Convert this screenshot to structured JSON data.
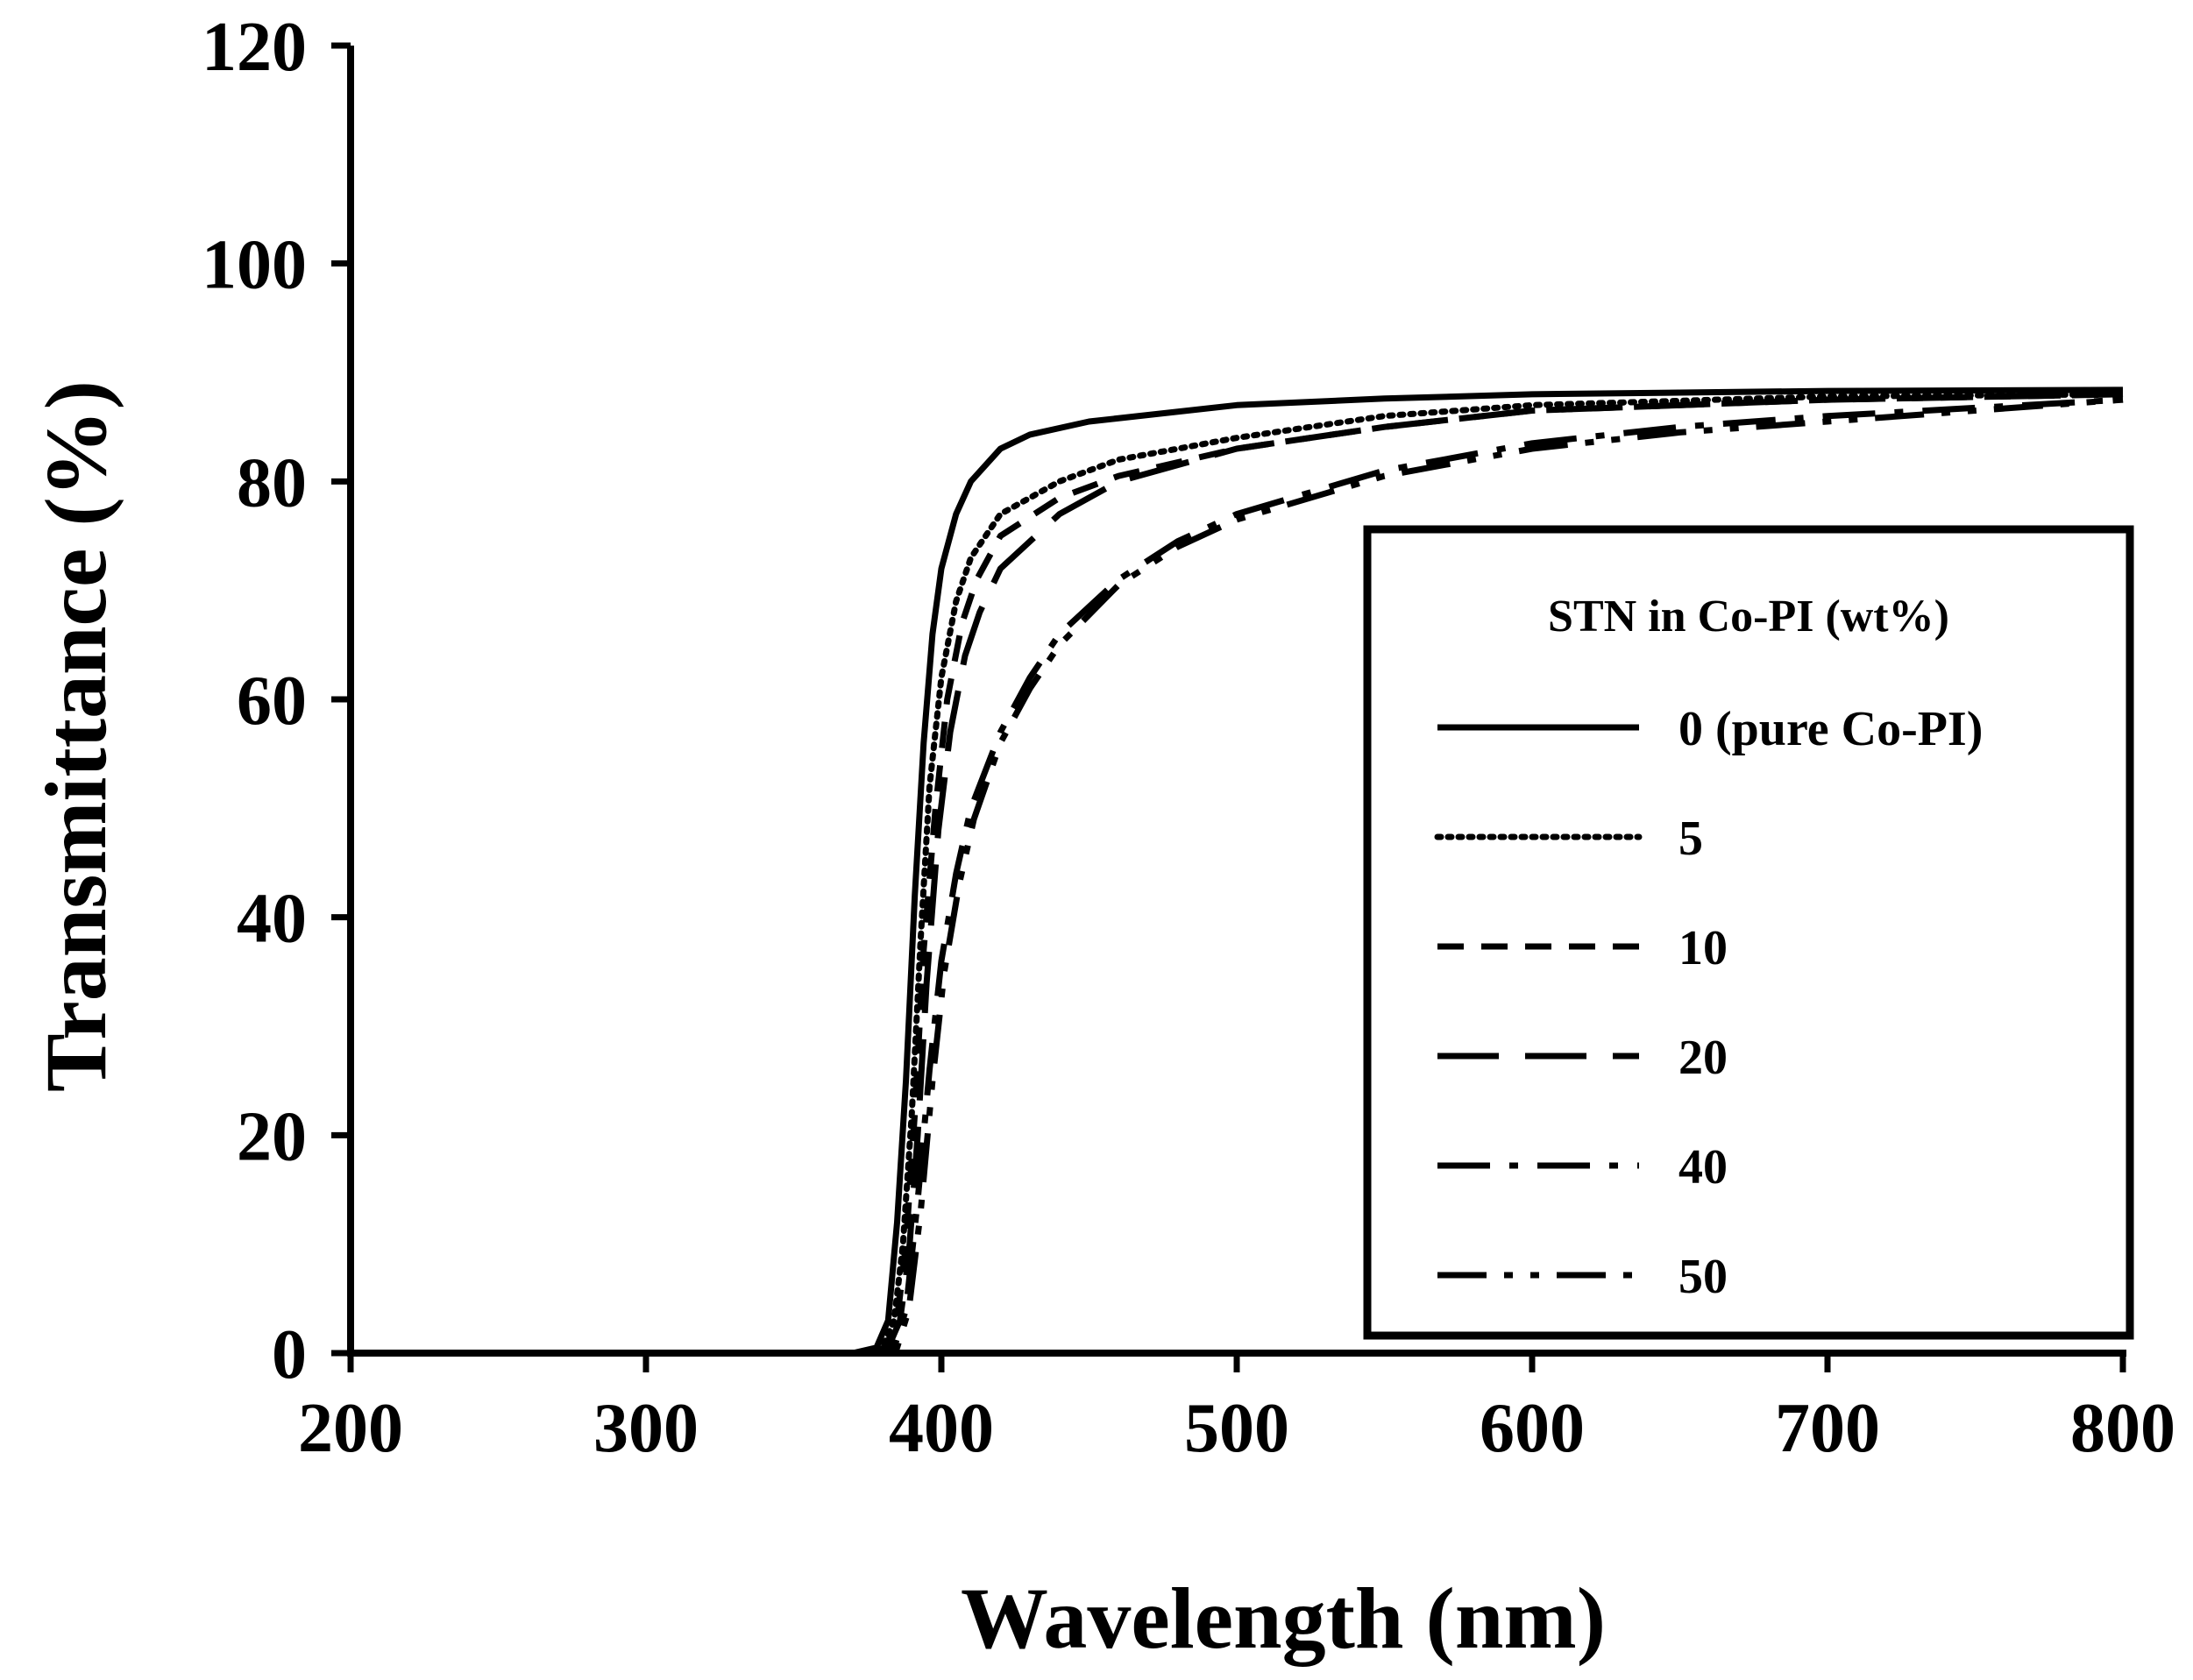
{
  "chart_data": {
    "type": "line",
    "title": "",
    "xlabel": "Wavelength (nm)",
    "ylabel": "Transmittance (%)",
    "xlim": [
      200,
      800
    ],
    "ylim": [
      0,
      120
    ],
    "xticks": [
      "200",
      "300",
      "400",
      "500",
      "600",
      "700",
      "800"
    ],
    "yticks": [
      "0",
      "20",
      "40",
      "60",
      "80",
      "100",
      "120"
    ],
    "grid": false,
    "legend": {
      "title": "STN in Co-PI (wt%)",
      "position": "right, mid-lower inside plot area",
      "boxed": true
    },
    "series": [
      {
        "name": "0 (pure Co-PI)",
        "style": "solid",
        "x": [
          200,
          370,
          378,
          382,
          385,
          388,
          391,
          394,
          397,
          400,
          405,
          410,
          420,
          430,
          450,
          500,
          550,
          600,
          700,
          800
        ],
        "y": [
          0,
          0,
          0.5,
          3,
          12,
          25,
          42,
          56,
          66,
          72,
          77,
          80,
          83,
          84.3,
          85.5,
          87,
          87.6,
          88,
          88.3,
          88.4
        ]
      },
      {
        "name": "5",
        "style": "dotted",
        "x": [
          200,
          372,
          380,
          384,
          387,
          390,
          393,
          396,
          400,
          405,
          410,
          420,
          440,
          460,
          500,
          550,
          600,
          700,
          800
        ],
        "y": [
          0,
          0,
          0.5,
          3,
          10,
          22,
          38,
          52,
          62,
          69,
          73,
          77,
          80,
          82,
          84,
          86,
          87,
          87.8,
          88
        ]
      },
      {
        "name": "10",
        "style": "dashed",
        "x": [
          200,
          373,
          381,
          385,
          388,
          391,
          394,
          398,
          402,
          407,
          412,
          420,
          440,
          460,
          500,
          550,
          600,
          700,
          800
        ],
        "y": [
          0,
          0,
          0.5,
          3,
          10,
          22,
          37,
          50,
          60,
          67,
          71,
          75,
          78.5,
          80.5,
          83,
          85,
          86.5,
          87.5,
          88
        ]
      },
      {
        "name": "20",
        "style": "long-dash",
        "x": [
          200,
          374,
          382,
          386,
          389,
          392,
          395,
          399,
          403,
          408,
          413,
          420,
          440,
          460,
          500,
          550,
          600,
          700,
          800
        ],
        "y": [
          0,
          0,
          0.5,
          3,
          9,
          20,
          34,
          48,
          57,
          64,
          68,
          72,
          77,
          80,
          83,
          85,
          86.5,
          87.5,
          88
        ]
      },
      {
        "name": "40",
        "style": "dash-dot",
        "x": [
          200,
          376,
          384,
          388,
          392,
          396,
          400,
          405,
          410,
          420,
          430,
          440,
          460,
          480,
          500,
          550,
          600,
          650,
          700,
          800
        ],
        "y": [
          0,
          0,
          0.5,
          4,
          14,
          26,
          36,
          44,
          50,
          57,
          62,
          66,
          71,
          74.5,
          77,
          81,
          83.5,
          85,
          86,
          87.5
        ]
      },
      {
        "name": "50",
        "style": "dash-dot-dot",
        "x": [
          200,
          377,
          385,
          389,
          393,
          397,
          401,
          406,
          411,
          420,
          430,
          440,
          460,
          480,
          500,
          550,
          600,
          650,
          700,
          800
        ],
        "y": [
          0,
          0,
          0.5,
          4,
          13,
          25,
          35,
          43,
          49,
          56,
          61,
          65,
          70.5,
          74,
          76.5,
          80.5,
          83,
          84.5,
          85.5,
          87.5
        ]
      }
    ]
  }
}
